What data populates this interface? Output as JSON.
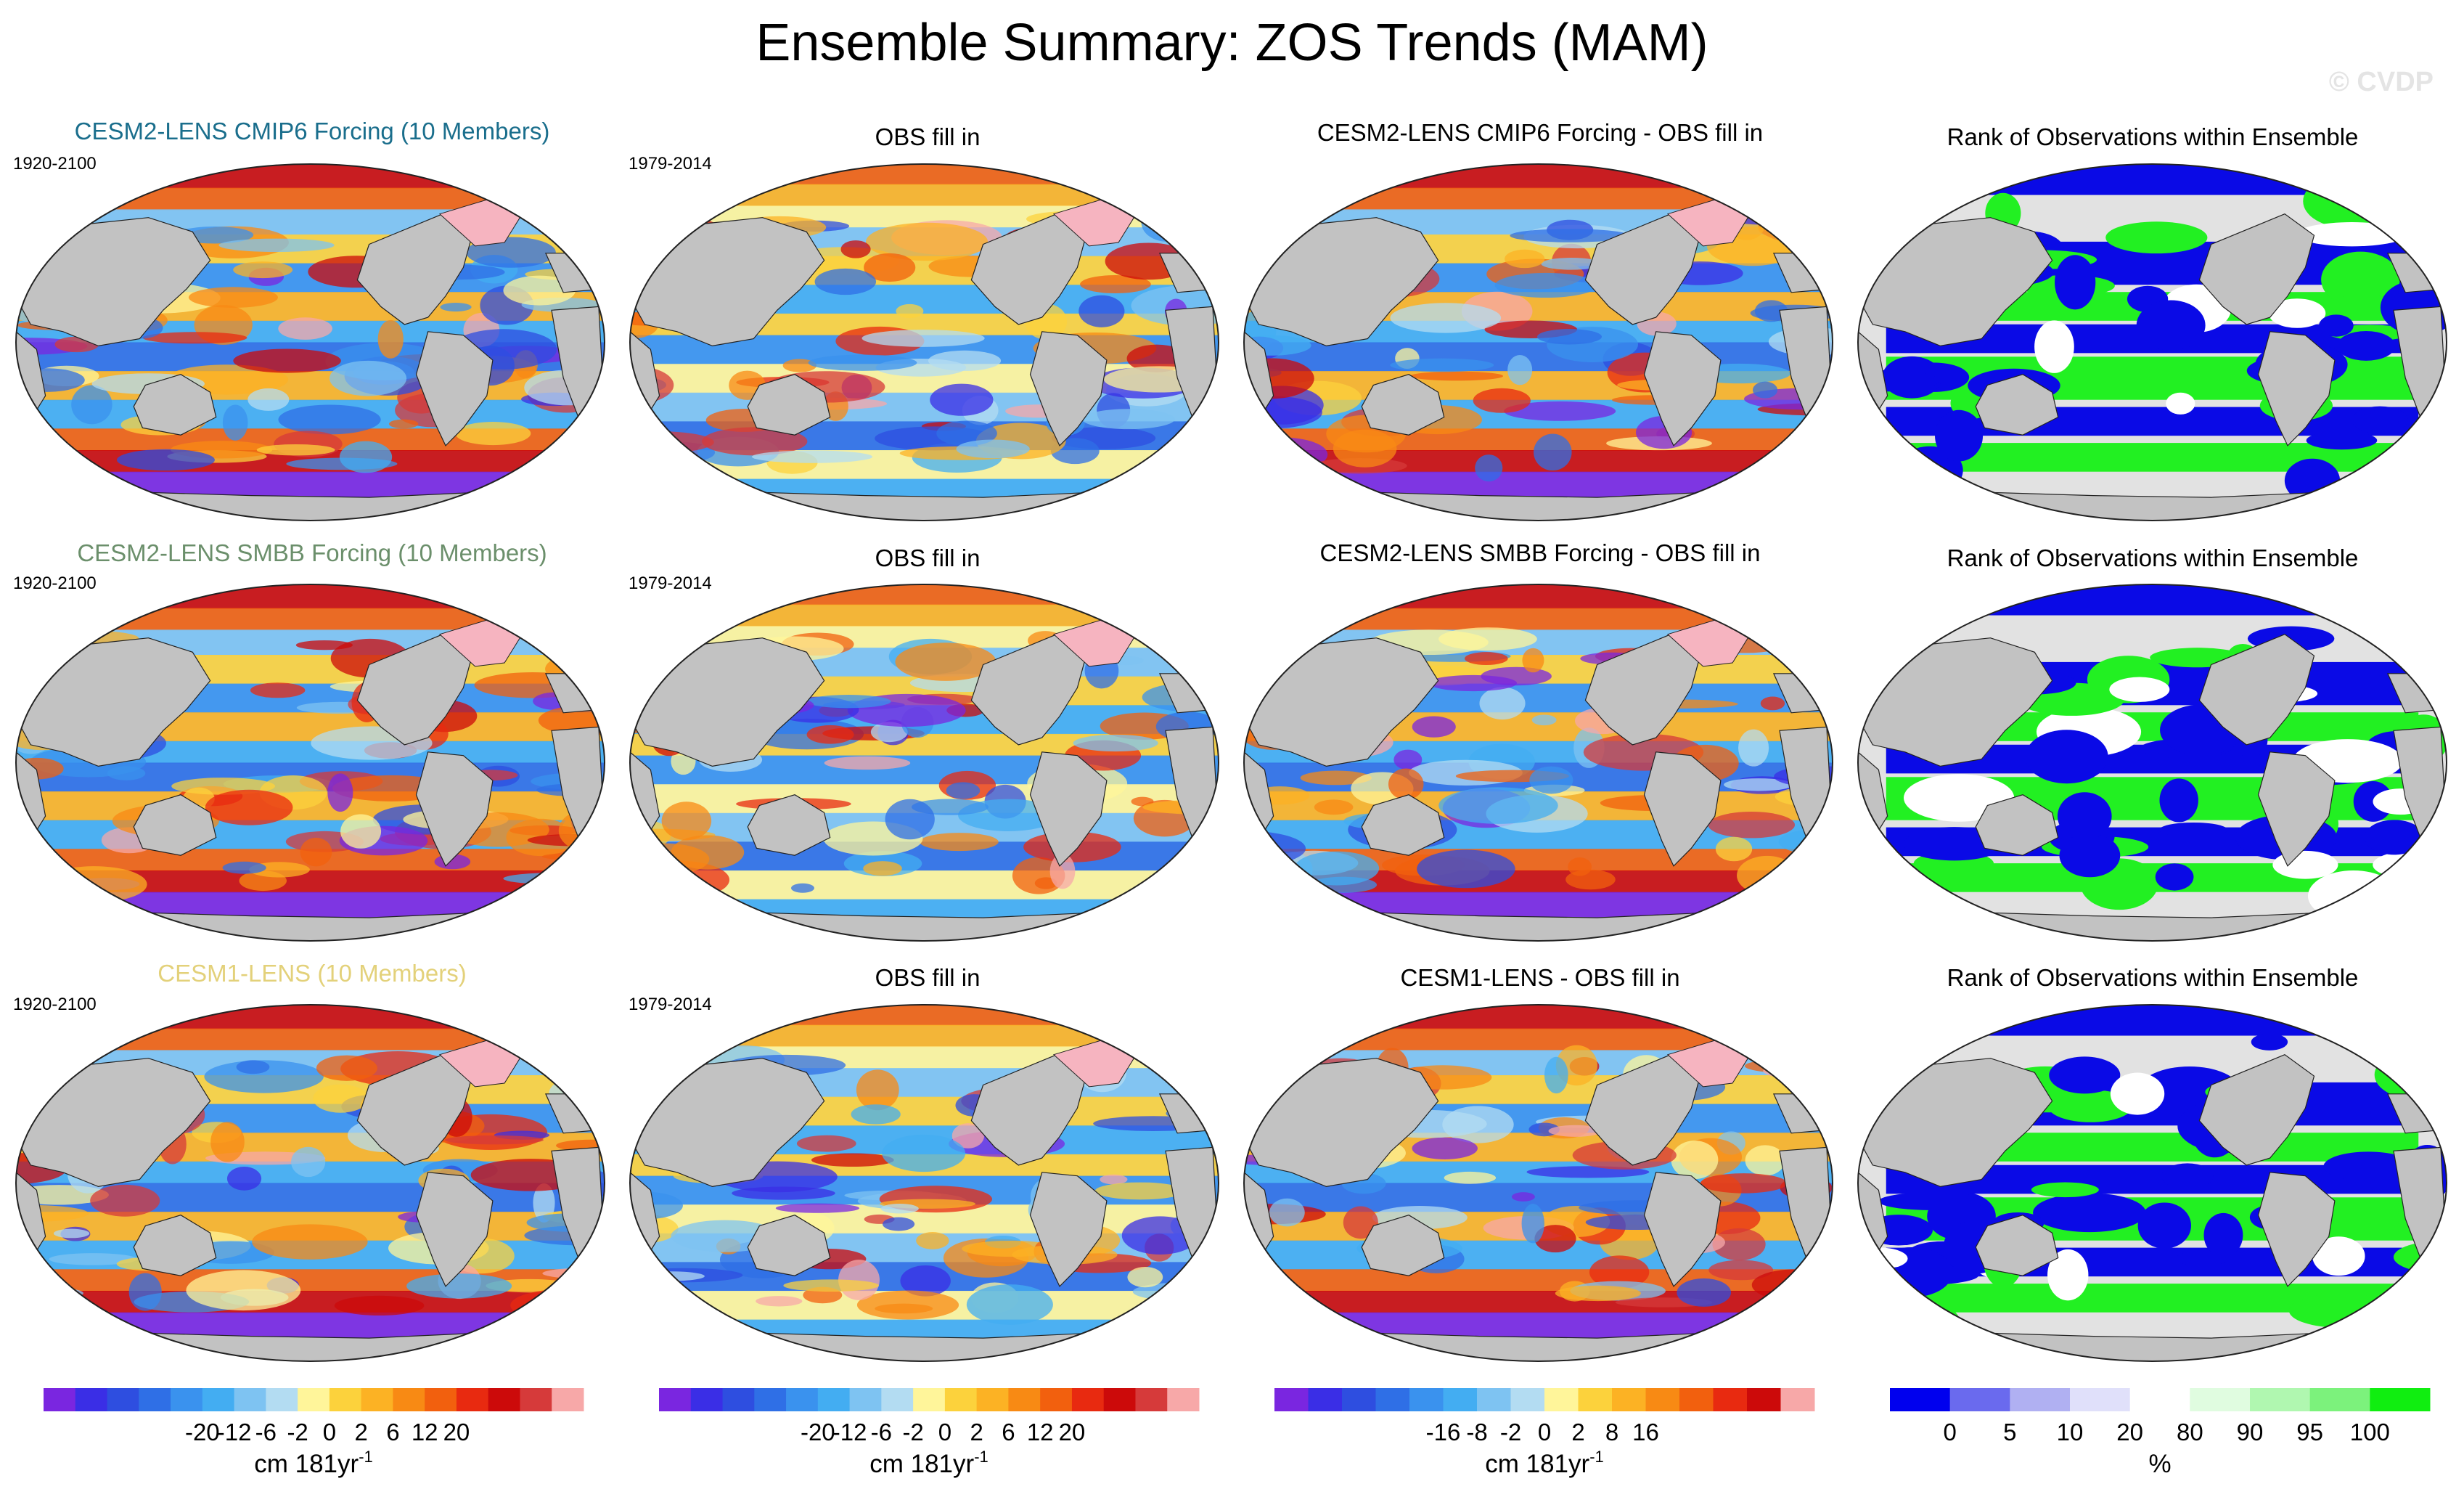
{
  "title": "Ensemble Summary: ZOS Trends (MAM)",
  "watermark": "© CVDP",
  "colors": {
    "ocean_base": "#9fc9f5",
    "land": "#c2c2c2",
    "ice": "#e2e2e2",
    "outline": "#222222",
    "cesm2_cmip6_title": "#1a6e8c",
    "cesm2_smbb_title": "#6b8f6b",
    "cesm1_title": "#e3d17a",
    "rank_blue": "#0a0ae6",
    "rank_green": "#22f022",
    "rank_white": "#ffffff"
  },
  "rows": [
    {
      "model_title": "CESM2-LENS CMIP6 Forcing (10 Members)",
      "model_period": "1920-2100",
      "obs_title": "OBS fill in",
      "obs_period": "1979-2014",
      "diff_title": "CESM2-LENS CMIP6 Forcing - OBS fill in",
      "rank_title": "Rank of Observations within Ensemble"
    },
    {
      "model_title": "CESM2-LENS SMBB Forcing (10 Members)",
      "model_period": "1920-2100",
      "obs_title": "OBS fill in",
      "obs_period": "1979-2014",
      "diff_title": "CESM2-LENS SMBB Forcing - OBS fill in",
      "rank_title": "Rank of Observations within Ensemble"
    },
    {
      "model_title": "CESM1-LENS (10 Members)",
      "model_period": "1920-2100",
      "obs_title": "OBS fill in",
      "obs_period": "1979-2014",
      "diff_title": "CESM1-LENS - OBS fill in",
      "rank_title": "Rank of Observations within Ensemble"
    }
  ],
  "colorbars": [
    {
      "colors": [
        "#7a26e0",
        "#3a2ee6",
        "#2e4ee0",
        "#2f6fe6",
        "#3a92ee",
        "#43adf2",
        "#7ec3f2",
        "#b3dcf2",
        "#fff59a",
        "#fcd23c",
        "#fcb224",
        "#f88a14",
        "#f2600e",
        "#e82a10",
        "#cc0a0a",
        "#d63a3a",
        "#f7a8a8"
      ],
      "labels": [
        "-20",
        "-12",
        "-6",
        "-2",
        "0",
        "2",
        "6",
        "12",
        "20"
      ],
      "unit": "cm 181yr",
      "unit_exp": "-1"
    },
    {
      "colors": [
        "#7a26e0",
        "#3a2ee6",
        "#2e4ee0",
        "#2f6fe6",
        "#3a92ee",
        "#43adf2",
        "#7ec3f2",
        "#b3dcf2",
        "#fff59a",
        "#fcd23c",
        "#fcb224",
        "#f88a14",
        "#f2600e",
        "#e82a10",
        "#cc0a0a",
        "#d63a3a",
        "#f7a8a8"
      ],
      "labels": [
        "-20",
        "-12",
        "-6",
        "-2",
        "0",
        "2",
        "6",
        "12",
        "20"
      ],
      "unit": "cm 181yr",
      "unit_exp": "-1"
    },
    {
      "colors": [
        "#7a26e0",
        "#3a2ee6",
        "#2e4ee0",
        "#2f6fe6",
        "#3a92ee",
        "#43adf2",
        "#7ec3f2",
        "#b3dcf2",
        "#fff59a",
        "#fcd23c",
        "#fcb224",
        "#f88a14",
        "#f2600e",
        "#e82a10",
        "#cc0a0a",
        "#f7a8a8"
      ],
      "labels": [
        "-16",
        "-8",
        "-2",
        "0",
        "2",
        "8",
        "16"
      ],
      "unit": "cm 181yr",
      "unit_exp": "-1"
    },
    {
      "colors": [
        "#0000ee",
        "#6a6aee",
        "#b0b0f2",
        "#e0e0fa",
        "#ffffff",
        "#e0fce0",
        "#b0f7b0",
        "#7cf27c",
        "#10ee10"
      ],
      "labels": [
        "0",
        "5",
        "10",
        "20",
        "80",
        "90",
        "95",
        "100"
      ],
      "unit": "%",
      "unit_exp": ""
    }
  ]
}
